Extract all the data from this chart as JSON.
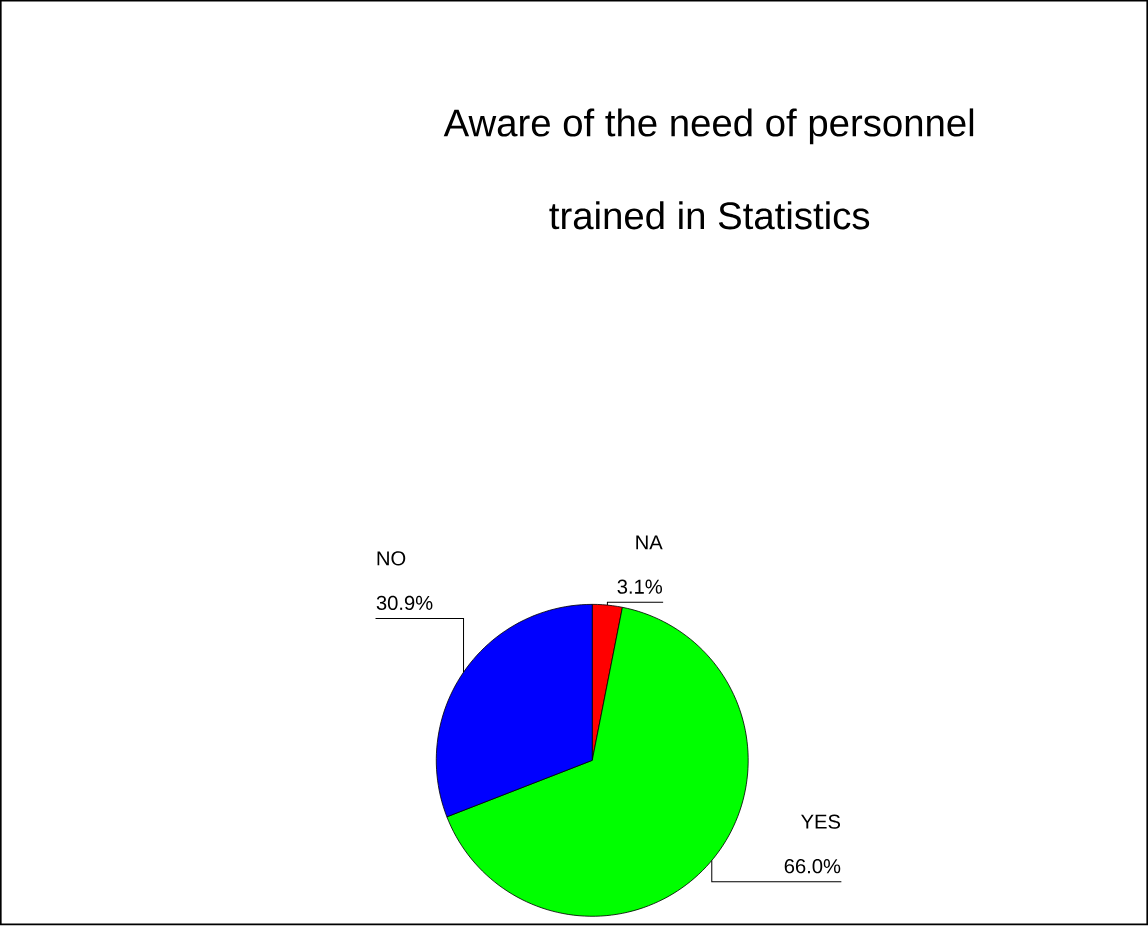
{
  "chart_data": {
    "type": "pie",
    "title": "Aware of the need of personnel trained in Statistics",
    "categories": [
      "NA",
      "YES",
      "NO"
    ],
    "values": [
      3.1,
      66.0,
      30.9
    ],
    "colors": [
      "#ff0000",
      "#00ff00",
      "#0000ff"
    ],
    "value_labels": [
      "3.1%",
      "66.0%",
      "30.9%"
    ]
  }
}
